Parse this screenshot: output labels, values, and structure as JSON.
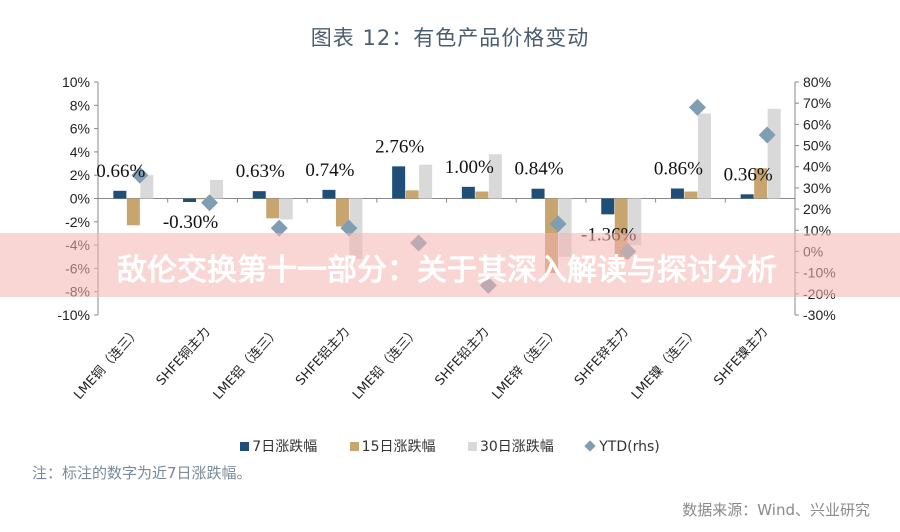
{
  "chart_data": {
    "type": "bar",
    "title": "图表 12：有色产品价格变动",
    "categories": [
      "LME铜（连三）",
      "SHFE铜主力",
      "LME铝（连三）",
      "SHFE铝主力",
      "LME铅（连三）",
      "SHFE铅主力",
      "LME锌（连三）",
      "SHFE锌主力",
      "LME镍（连三）",
      "SHFE镍主力"
    ],
    "series": [
      {
        "name": "7日涨跌幅",
        "axis": "left",
        "color": "#1f4e79",
        "values": [
          0.66,
          -0.3,
          0.63,
          0.74,
          2.76,
          1.0,
          0.84,
          -1.36,
          0.86,
          0.36
        ]
      },
      {
        "name": "15日涨跌幅",
        "axis": "left",
        "color": "#c8a46e",
        "values": [
          -2.3,
          0.0,
          -1.7,
          -2.4,
          0.7,
          0.6,
          -6.4,
          -5.2,
          0.6,
          2.6
        ]
      },
      {
        "name": "30日涨跌幅",
        "axis": "left",
        "color": "#d9d9d9",
        "values": [
          2.0,
          1.6,
          -1.8,
          -5.2,
          2.9,
          3.8,
          -5.0,
          -4.0,
          7.3,
          7.7
        ]
      },
      {
        "name": "YTD(rhs)",
        "axis": "right",
        "type": "scatter",
        "marker": "diamond",
        "color": "#7f9eb2",
        "values": [
          36,
          23,
          11,
          11,
          4,
          -16,
          13,
          0,
          68,
          55
        ]
      }
    ],
    "data_labels": [
      "0.66%",
      "-0.30%",
      "0.63%",
      "0.74%",
      "2.76%",
      "1.00%",
      "0.84%",
      "-1.36%",
      "0.86%",
      "0.36%"
    ],
    "y_left": {
      "ticks": [
        "10%",
        "8%",
        "6%",
        "4%",
        "2%",
        "0%",
        "-2%",
        "-4%",
        "-6%",
        "-8%",
        "-10%"
      ],
      "range": [
        -10,
        10
      ]
    },
    "y_right": {
      "ticks": [
        "80%",
        "70%",
        "60%",
        "50%",
        "40%",
        "30%",
        "20%",
        "10%",
        "0%",
        "-10%",
        "-20%",
        "-30%"
      ],
      "range": [
        -30,
        80
      ]
    },
    "legend_position": "bottom",
    "grid": false
  },
  "note": "注：标注的数字为近7日涨跌幅。",
  "source": "数据来源：Wind、兴业研究",
  "banner": "敌伦交换第十一部分：关于其深入解读与探讨分析"
}
